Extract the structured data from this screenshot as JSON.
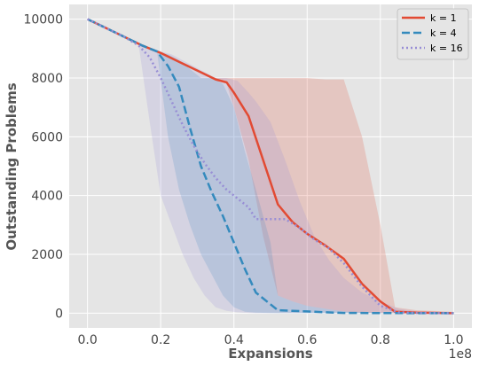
{
  "chart_data": {
    "type": "line",
    "title": "",
    "xlabel": "Expansions",
    "ylabel": "Outstanding Problems",
    "x_offset_label": "1e8",
    "xlim": [
      -0.05,
      1.05
    ],
    "ylim": [
      -500,
      10500
    ],
    "xticks": [
      0.0,
      0.2,
      0.4,
      0.6,
      0.8,
      1.0
    ],
    "xtick_labels": [
      "0.0",
      "0.2",
      "0.4",
      "0.6",
      "0.8",
      "1.0"
    ],
    "yticks": [
      0,
      2000,
      4000,
      6000,
      8000,
      10000
    ],
    "ytick_labels": [
      "0",
      "2000",
      "4000",
      "6000",
      "8000",
      "10000"
    ],
    "grid": true,
    "legend_position": "top-right",
    "series": [
      {
        "name": "k = 1",
        "color": "#e24a33",
        "style": "solid",
        "x": [
          0.0,
          0.05,
          0.1,
          0.15,
          0.2,
          0.25,
          0.3,
          0.35,
          0.38,
          0.4,
          0.44,
          0.48,
          0.52,
          0.56,
          0.6,
          0.65,
          0.7,
          0.75,
          0.8,
          0.84,
          0.9,
          1.0
        ],
        "y": [
          10000,
          9700,
          9400,
          9100,
          8850,
          8550,
          8250,
          7950,
          7850,
          7500,
          6700,
          5200,
          3700,
          3100,
          2700,
          2300,
          1850,
          1000,
          400,
          50,
          20,
          0
        ],
        "band_lower": [
          10000,
          9700,
          9400,
          9100,
          8850,
          8550,
          8250,
          7950,
          7800,
          7000,
          5200,
          2600,
          600,
          400,
          250,
          150,
          60,
          20,
          0,
          0,
          0,
          0
        ],
        "band_upper": [
          10000,
          9700,
          9400,
          9100,
          8850,
          8550,
          8250,
          8000,
          8000,
          8000,
          8000,
          8000,
          8000,
          8000,
          8000,
          7950,
          7950,
          6000,
          3000,
          200,
          100,
          50
        ]
      },
      {
        "name": "k = 4",
        "color": "#348abd",
        "style": "dashed",
        "x": [
          0.0,
          0.05,
          0.1,
          0.15,
          0.19,
          0.22,
          0.25,
          0.28,
          0.31,
          0.34,
          0.37,
          0.4,
          0.43,
          0.46,
          0.5,
          0.52,
          0.56,
          0.6,
          0.65,
          0.7,
          0.8,
          0.9,
          1.0
        ],
        "y": [
          10000,
          9700,
          9400,
          9100,
          8900,
          8400,
          7700,
          6300,
          5000,
          4100,
          3300,
          2400,
          1500,
          700,
          300,
          100,
          80,
          60,
          30,
          10,
          5,
          2,
          0
        ],
        "band_lower": [
          10000,
          9700,
          9400,
          9100,
          8900,
          6000,
          4200,
          3000,
          2000,
          1300,
          600,
          200,
          50,
          20,
          5,
          0,
          0,
          0,
          0,
          0,
          0,
          0,
          0
        ],
        "band_upper": [
          10000,
          9700,
          9400,
          9100,
          8900,
          8800,
          8600,
          8300,
          8000,
          8000,
          7800,
          7000,
          5500,
          4200,
          2400,
          600,
          400,
          250,
          150,
          60,
          20,
          5,
          0
        ]
      },
      {
        "name": "k = 16",
        "color": "#988ed5",
        "style": "dotted",
        "x": [
          0.0,
          0.05,
          0.1,
          0.14,
          0.17,
          0.2,
          0.23,
          0.26,
          0.29,
          0.32,
          0.35,
          0.38,
          0.41,
          0.44,
          0.46,
          0.5,
          0.54,
          0.58,
          0.62,
          0.66,
          0.7,
          0.75,
          0.8,
          0.85,
          0.9,
          1.0
        ],
        "y": [
          10000,
          9700,
          9400,
          9100,
          8700,
          8000,
          7200,
          6400,
          5700,
          5100,
          4600,
          4200,
          3900,
          3600,
          3200,
          3200,
          3200,
          2900,
          2500,
          2200,
          1700,
          900,
          250,
          30,
          10,
          0
        ],
        "band_lower": [
          10000,
          9700,
          9400,
          9100,
          6500,
          4000,
          3000,
          2000,
          1200,
          600,
          200,
          80,
          30,
          10,
          0,
          0,
          0,
          0,
          0,
          0,
          0,
          0,
          0,
          0,
          0,
          0
        ],
        "band_upper": [
          10000,
          9700,
          9400,
          9100,
          9000,
          8900,
          8800,
          8600,
          8400,
          8200,
          8000,
          8000,
          7900,
          7500,
          7200,
          6500,
          5200,
          3800,
          2600,
          1800,
          1200,
          700,
          400,
          150,
          60,
          0
        ]
      }
    ]
  }
}
